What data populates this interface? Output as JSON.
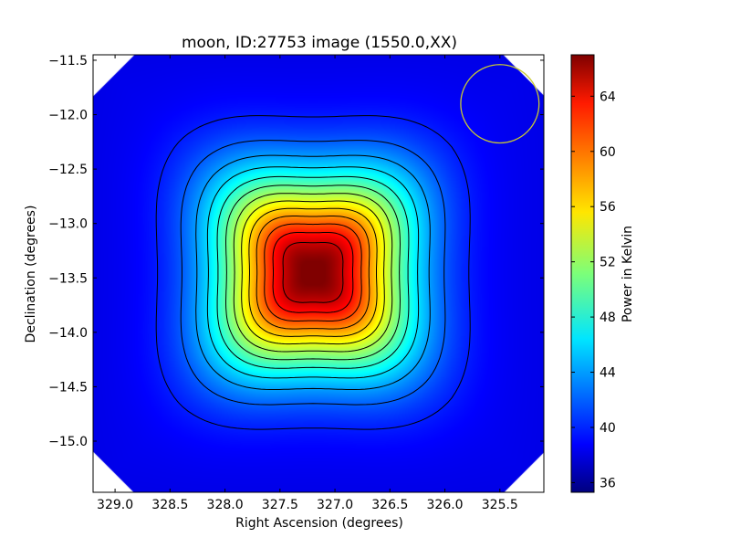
{
  "chart_data": {
    "type": "heatmap",
    "title": "moon, ID:27753 image (1550.0,XX)",
    "xlabel": "Right Ascension (degrees)",
    "ylabel": "Declination (degrees)",
    "xlim": [
      329.2,
      325.1
    ],
    "ylim": [
      -15.47,
      -11.45
    ],
    "x_ticks": [
      {
        "value": 329.0,
        "label": "329.0"
      },
      {
        "value": 328.5,
        "label": "328.5"
      },
      {
        "value": 328.0,
        "label": "328.0"
      },
      {
        "value": 327.5,
        "label": "327.5"
      },
      {
        "value": 327.0,
        "label": "327.0"
      },
      {
        "value": 326.5,
        "label": "326.5"
      },
      {
        "value": 326.0,
        "label": "326.0"
      },
      {
        "value": 325.5,
        "label": "325.5"
      }
    ],
    "y_ticks": [
      {
        "value": -11.5,
        "label": "−11.5"
      },
      {
        "value": -12.0,
        "label": "−12.0"
      },
      {
        "value": -12.5,
        "label": "−12.5"
      },
      {
        "value": -13.0,
        "label": "−13.0"
      },
      {
        "value": -13.5,
        "label": "−13.5"
      },
      {
        "value": -14.0,
        "label": "−14.0"
      },
      {
        "value": -14.5,
        "label": "−14.5"
      },
      {
        "value": -15.0,
        "label": "−15.0"
      }
    ],
    "colorbar": {
      "label": "Power in Kelvin",
      "range": [
        35.3,
        67.0
      ],
      "colormap": "jet",
      "ticks": [
        {
          "value": 36,
          "label": "36"
        },
        {
          "value": 40,
          "label": "40"
        },
        {
          "value": 44,
          "label": "44"
        },
        {
          "value": 48,
          "label": "48"
        },
        {
          "value": 52,
          "label": "52"
        },
        {
          "value": 56,
          "label": "56"
        },
        {
          "value": 60,
          "label": "60"
        },
        {
          "value": 64,
          "label": "64"
        }
      ]
    },
    "source": {
      "ra": 327.2,
      "dec": -13.45,
      "peak_kelvin": 67.0
    },
    "background_kelvin": 38.5,
    "contour_count": 13,
    "beam_circle": {
      "ra": 325.5,
      "dec": -11.9,
      "radius_deg": 0.36,
      "color": "#c8c832"
    },
    "image_footprint": "octagon"
  }
}
